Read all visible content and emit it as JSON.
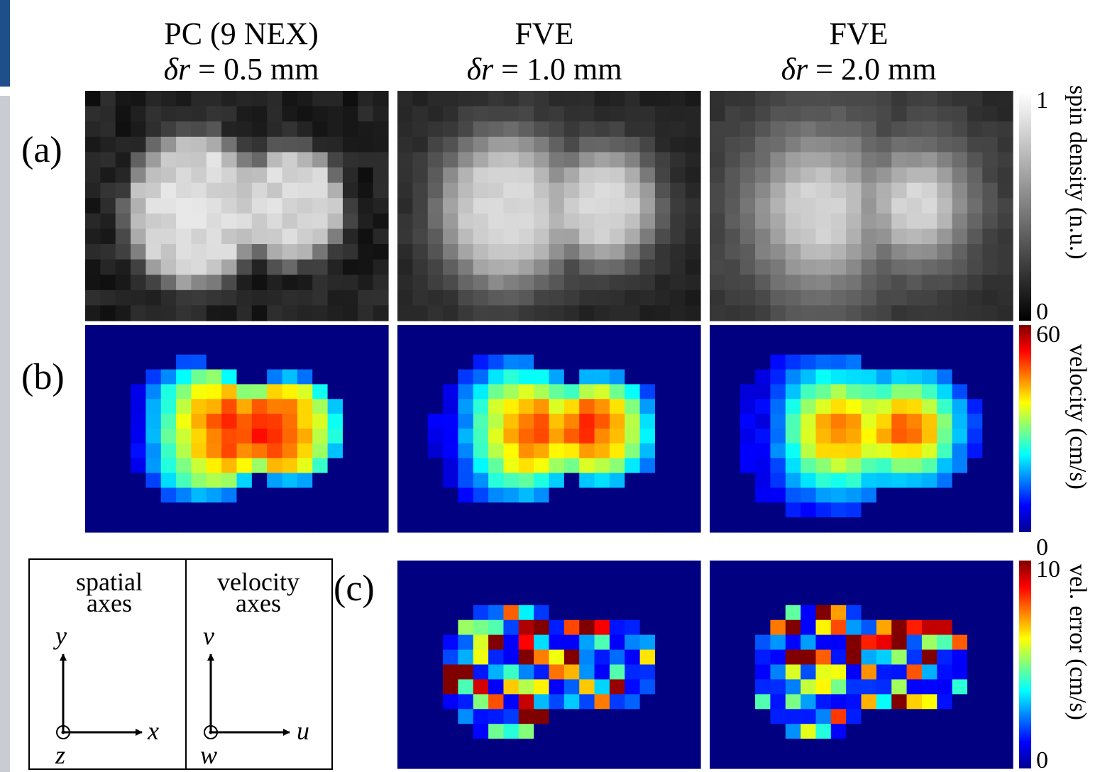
{
  "columns": [
    {
      "title": "PC (9 NEX)",
      "symbol": "δr",
      "subtitle": "= 0.5 mm"
    },
    {
      "title": "FVE",
      "symbol": "δr",
      "subtitle": "= 1.0 mm"
    },
    {
      "title": "FVE",
      "symbol": "δr",
      "subtitle": "= 2.0 mm"
    }
  ],
  "rows": [
    {
      "label": "(a)",
      "colorbar": {
        "max": "1",
        "min": "0",
        "label": "spin density (n.u.)"
      }
    },
    {
      "label": "(b)",
      "colorbar": {
        "max": "60",
        "min": "0",
        "label": "velocity (cm/s)"
      }
    },
    {
      "label": "(c)",
      "colorbar": {
        "max": "10",
        "min": "0",
        "label": "vel. error (cm/s)"
      }
    }
  ],
  "legend": {
    "spatial": {
      "title": [
        "spatial",
        "axes"
      ],
      "vertical": "y",
      "horizontal": "x",
      "normal": "z"
    },
    "velocity": {
      "title": [
        "velocity",
        "axes"
      ],
      "vertical": "v",
      "horizontal": "u",
      "normal": "w"
    }
  }
}
